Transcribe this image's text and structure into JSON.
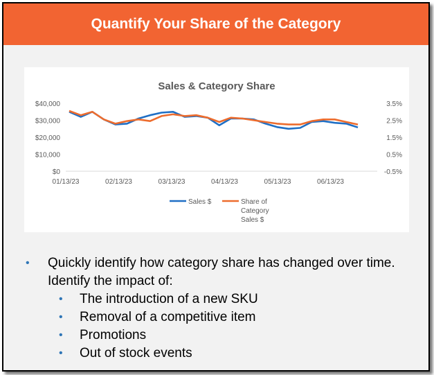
{
  "header": {
    "title": "Quantify Your Share of the Category"
  },
  "colors": {
    "header_bg": "#f26432",
    "sales": "#1f6fc5",
    "share": "#ed6c2d",
    "bullet": "#2e75b6"
  },
  "chart_data": {
    "type": "line",
    "title": "Sales & Category Share",
    "x_tick_labels": [
      "01/13/23",
      "02/13/23",
      "03/13/23",
      "04/13/23",
      "05/13/23",
      "06/13/23"
    ],
    "y_left_tick_labels": [
      "$40,000",
      "$30,000",
      "$20,000",
      "$10,000",
      "$0"
    ],
    "y_right_tick_labels": [
      "3.5%",
      "2.5%",
      "1.5%",
      "0.5%",
      "-0.5%"
    ],
    "y_left_range": [
      0,
      40000
    ],
    "y_right_range": [
      -0.5,
      3.5
    ],
    "legend_position": "bottom",
    "series": [
      {
        "name": "Sales $",
        "axis": "left",
        "values": [
          35000,
          32000,
          35000,
          30500,
          27500,
          28000,
          31000,
          33000,
          34500,
          35000,
          32000,
          32500,
          31500,
          27000,
          31000,
          31000,
          30500,
          28000,
          26000,
          25000,
          25500,
          29000,
          29500,
          28500,
          28000,
          25800
        ]
      },
      {
        "name": "Share of Category Sales $",
        "legend_label_lines": [
          "Share of",
          "Category",
          "Sales $"
        ],
        "axis": "right",
        "values": [
          3.05,
          2.8,
          3.0,
          2.55,
          2.3,
          2.45,
          2.55,
          2.45,
          2.75,
          2.85,
          2.75,
          2.8,
          2.65,
          2.4,
          2.65,
          2.6,
          2.5,
          2.4,
          2.3,
          2.25,
          2.25,
          2.45,
          2.55,
          2.55,
          2.4,
          2.25
        ]
      }
    ]
  },
  "bullets": {
    "main": "Quickly identify how category share has changed over time. Identify the impact of:",
    "main_line1": "Quickly identify how category share has changed over time.",
    "main_line2": "Identify the impact of:",
    "sub": [
      "The introduction of a new SKU",
      "Removal of a competitive item",
      "Promotions",
      "Out of stock events"
    ]
  }
}
